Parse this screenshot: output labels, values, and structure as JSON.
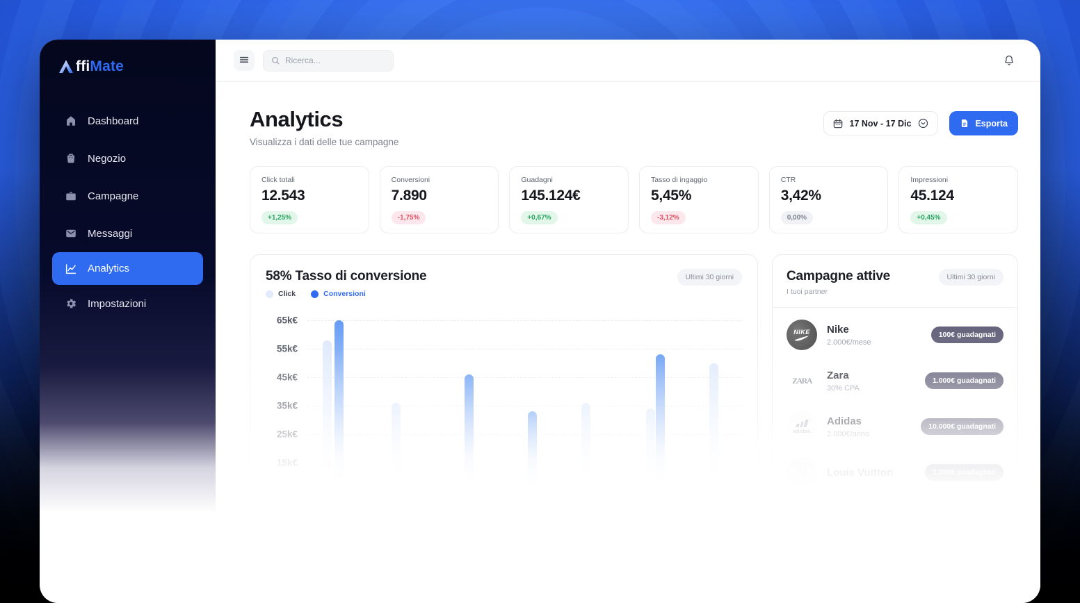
{
  "app": {
    "logo": {
      "white": "ffi",
      "accent": "Mate"
    }
  },
  "sidebar": {
    "items": [
      {
        "label": "Dashboard",
        "icon": "home-icon",
        "active": false
      },
      {
        "label": "Negozio",
        "icon": "store-icon",
        "active": false
      },
      {
        "label": "Campagne",
        "icon": "briefcase-icon",
        "active": false
      },
      {
        "label": "Messaggi",
        "icon": "mail-icon",
        "active": false
      },
      {
        "label": "Analytics",
        "icon": "chart-icon",
        "active": true
      },
      {
        "label": "Impostazioni",
        "icon": "gear-icon",
        "active": false
      }
    ]
  },
  "topbar": {
    "search_placeholder": "Ricerca..."
  },
  "header": {
    "title": "Analytics",
    "subtitle": "Visualizza i dati delle tue campagne",
    "date_range": "17 Nov - 17 Dic",
    "export_label": "Esporta"
  },
  "stats": {
    "cards": [
      {
        "label": "Click totali",
        "value": "12.543",
        "delta": "+1,25%",
        "trend": "up"
      },
      {
        "label": "Conversioni",
        "value": "7.890",
        "delta": "-1,75%",
        "trend": "down"
      },
      {
        "label": "Guadagni",
        "value": "145.124€",
        "delta": "+0,67%",
        "trend": "up"
      },
      {
        "label": "Tasso di ingaggio",
        "value": "5,45%",
        "delta": "-3,12%",
        "trend": "down"
      },
      {
        "label": "CTR",
        "value": "3,42%",
        "delta": "0,00%",
        "trend": "neutral"
      },
      {
        "label": "Impressioni",
        "value": "45.124",
        "delta": "+0,45%",
        "trend": "up"
      }
    ]
  },
  "chart": {
    "title": "58% Tasso di conversione",
    "period": "Ultimi 30 giorni",
    "legend": [
      {
        "label": "Click",
        "color": "#e2ebfb",
        "text_color": "#3f4350"
      },
      {
        "label": "Conversioni",
        "color": "#2e6bf0",
        "text_color": "#2e6bf0"
      }
    ],
    "y_ticks": [
      "65k€",
      "55k€",
      "45k€",
      "35k€",
      "25k€",
      "15k€"
    ],
    "y_top_value_k": 65,
    "y_step_k": 10,
    "bars": [
      {
        "series": "click",
        "value_k": 58,
        "x": 82
      },
      {
        "series": "conversioni",
        "value_k": 65,
        "x": 99
      },
      {
        "series": "click",
        "value_k": 36,
        "x": 181
      },
      {
        "series": "conversioni",
        "value_k": 46,
        "x": 286
      },
      {
        "series": "conversioni",
        "value_k": 33,
        "x": 377
      },
      {
        "series": "click",
        "value_k": 36,
        "x": 454
      },
      {
        "series": "click",
        "value_k": 34,
        "x": 547
      },
      {
        "series": "conversioni",
        "value_k": 53,
        "x": 561
      },
      {
        "series": "click",
        "value_k": 50,
        "x": 638
      }
    ]
  },
  "campaigns": {
    "title": "Campagne attive",
    "subtitle": "I tuoi partner",
    "period": "Ultimi 30 giorni",
    "items": [
      {
        "name": "Nike",
        "terms": "2.000€/mese",
        "badge": "100€ guadagnati",
        "logo": "nike-logo"
      },
      {
        "name": "Zara",
        "terms": "30% CPA",
        "badge": "1.000€ guadagnati",
        "logo": "zara-logo"
      },
      {
        "name": "Adidas",
        "terms": "2.000€/anno",
        "badge": "10.000€ guadagnati",
        "logo": "adidas-logo"
      },
      {
        "name": "Louis Vuitton",
        "terms": "",
        "badge": "1.200€ guadagnati",
        "logo": "louis-vuitton-logo"
      }
    ]
  },
  "colors": {
    "accent_blue": "#2e6bf0",
    "sidebar_dark": "#070b2b",
    "badge_dark": "#5c5a74",
    "green_up": "#27a45f",
    "red_down": "#e54f63"
  }
}
